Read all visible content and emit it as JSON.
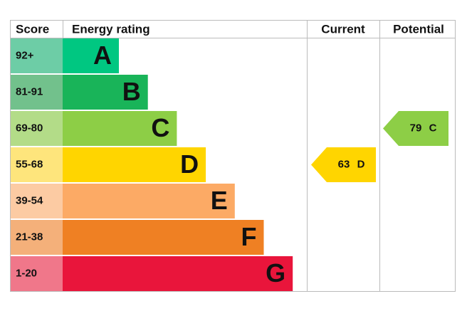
{
  "header": {
    "score": "Score",
    "rating": "Energy rating",
    "current": "Current",
    "potential": "Potential"
  },
  "bands": [
    {
      "score": "92+",
      "letter": "A",
      "color": "#00c781",
      "tint": "#6dcda6"
    },
    {
      "score": "81-91",
      "letter": "B",
      "color": "#19b459",
      "tint": "#72c18c"
    },
    {
      "score": "69-80",
      "letter": "C",
      "color": "#8dce46",
      "tint": "#b3dc88"
    },
    {
      "score": "55-68",
      "letter": "D",
      "color": "#ffd500",
      "tint": "#fee57c"
    },
    {
      "score": "39-54",
      "letter": "E",
      "color": "#fcaa65",
      "tint": "#fccba3"
    },
    {
      "score": "21-38",
      "letter": "F",
      "color": "#ef8023",
      "tint": "#f4b07a"
    },
    {
      "score": "1-20",
      "letter": "G",
      "color": "#e9153b",
      "tint": "#f0778a"
    }
  ],
  "current": {
    "value": 63,
    "letter": "D"
  },
  "potential": {
    "value": 79,
    "letter": "C"
  }
}
